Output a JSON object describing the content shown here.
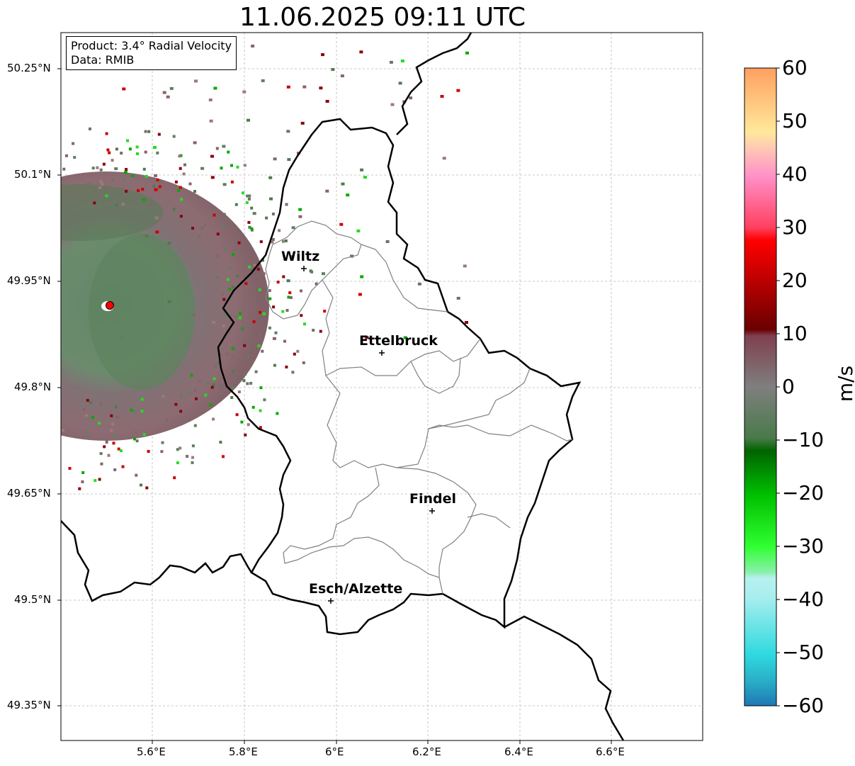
{
  "title": "11.06.2025 09:11 UTC",
  "info": {
    "product": "Product: 3.4° Radial Velocity",
    "data": "Data: RMIB"
  },
  "axes": {
    "lon_ticks": [
      "5.6°E",
      "5.8°E",
      "6°E",
      "6.2°E",
      "6.4°E",
      "6.6°E"
    ],
    "lat_ticks": [
      "50.25°N",
      "50.1°N",
      "49.95°N",
      "49.8°N",
      "49.65°N",
      "49.5°N",
      "49.35°N"
    ]
  },
  "colorbar": {
    "unit": "m/s",
    "min": -60,
    "max": 60,
    "ticks": [
      "60",
      "50",
      "40",
      "30",
      "20",
      "10",
      "0",
      "−10",
      "−20",
      "−30",
      "−40",
      "−50",
      "−60"
    ]
  },
  "cities": [
    {
      "name": "Wiltz",
      "lon": 5.93,
      "lat": 49.97
    },
    {
      "name": "Ettelbruck",
      "lon": 6.1,
      "lat": 49.85
    },
    {
      "name": "Findel",
      "lon": 6.21,
      "lat": 49.63
    },
    {
      "name": "Esch/Alzette",
      "lon": 5.98,
      "lat": 49.5
    }
  ],
  "radar_site": {
    "lon": 5.51,
    "lat": 49.91
  },
  "colors": {
    "border": "#000000",
    "cantons": "#808080",
    "grid": "#b0b0b0",
    "radar_marker": "#ff0000"
  }
}
